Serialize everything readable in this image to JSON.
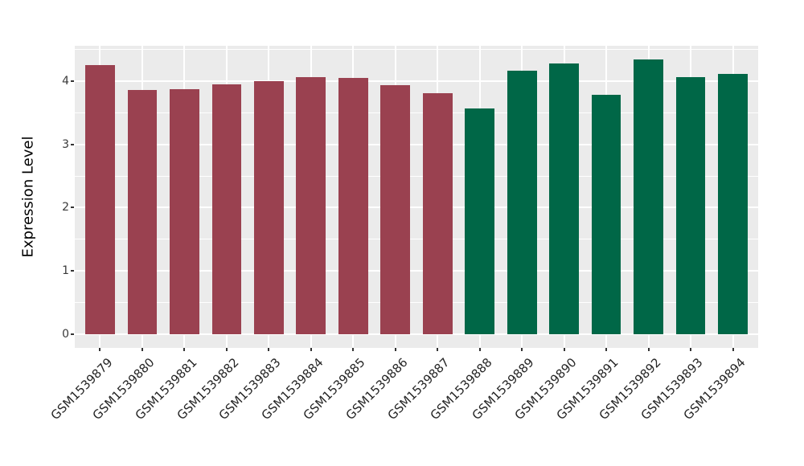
{
  "chart_data": {
    "type": "bar",
    "title": "",
    "xlabel": "",
    "ylabel": "Expression Level",
    "categories": [
      "GSM1539879",
      "GSM1539880",
      "GSM1539881",
      "GSM1539882",
      "GSM1539883",
      "GSM1539884",
      "GSM1539885",
      "GSM1539886",
      "GSM1539887",
      "GSM1539888",
      "GSM1539889",
      "GSM1539890",
      "GSM1539891",
      "GSM1539892",
      "GSM1539893",
      "GSM1539894"
    ],
    "values": [
      4.25,
      3.86,
      3.87,
      3.95,
      4.0,
      4.06,
      4.05,
      3.94,
      3.81,
      3.57,
      4.17,
      4.28,
      3.78,
      4.34,
      4.06,
      4.12
    ],
    "bar_groups": [
      0,
      0,
      0,
      0,
      0,
      0,
      0,
      0,
      0,
      1,
      1,
      1,
      1,
      1,
      1,
      1
    ],
    "group_colors": [
      "#9A4150",
      "#006747"
    ],
    "ylim": [
      -0.22,
      4.56
    ],
    "yticks": [
      0,
      1,
      2,
      3,
      4
    ],
    "ytick_labels": [
      "0",
      "1",
      "2",
      "3",
      "4"
    ],
    "yticks_minor": [
      0.5,
      1.5,
      2.5,
      3.5,
      4.5
    ],
    "grid": "major-and-minor-horizontal, major-vertical-at-categories",
    "legend": "none",
    "panel_background": "#EBEBEB",
    "gridline_color": "#FFFFFF",
    "x_label_angle_deg": 45
  }
}
